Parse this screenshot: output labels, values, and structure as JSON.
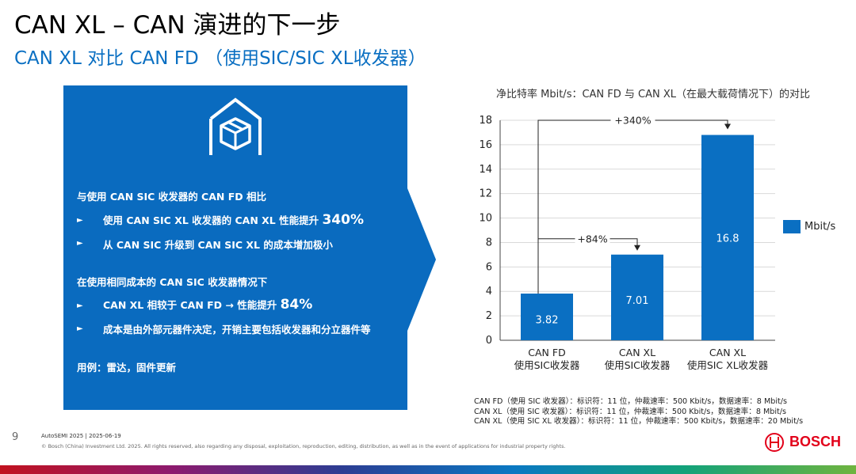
{
  "header": {
    "title": "CAN XL – CAN 演进的下一步",
    "subtitle": "CAN XL 对比 CAN FD （使用SIC/SIC XL收发器）"
  },
  "panel": {
    "icon": "box-in-house-icon",
    "section1_heading": "与使用 CAN SIC 收发器的 CAN FD 相比",
    "section1_bullet1_text": "使用 CAN SIC XL 收发器的 CAN XL 性能提升 ",
    "section1_bullet1_value": "340%",
    "section1_bullet2_text": "从 CAN SIC 升级到 CAN SIC XL 的成本增加极小",
    "section2_heading": "在使用相同成本的 CAN SIC 收发器情况下",
    "section2_bullet1_text": "CAN XL 相较于 CAN FD → 性能提升 ",
    "section2_bullet1_value": "84%",
    "section2_bullet2_text": "成本是由外部元器件决定，开销主要包括收发器和分立器件等",
    "usecase": "用例：雷达，固件更新",
    "bullet_glyph": "►"
  },
  "chart_data": {
    "type": "bar",
    "title": "净比特率 Mbit/s：CAN FD 与 CAN XL（在最大载荷情况下）的对比",
    "categories": [
      [
        "CAN FD",
        "使用SIC收发器"
      ],
      [
        "CAN XL",
        "使用SIC收发器"
      ],
      [
        "CAN XL",
        "使用SIC XL收发器"
      ]
    ],
    "series": [
      {
        "name": "Mbit/s",
        "values": [
          3.82,
          7.01,
          16.8
        ]
      }
    ],
    "data_labels": [
      "3.82",
      "7.01",
      "16.8"
    ],
    "yticks": [
      0,
      2,
      4,
      6,
      8,
      10,
      12,
      14,
      16,
      18
    ],
    "ylim": [
      0,
      18
    ],
    "grid": true,
    "legend_position": "right",
    "bar_color": "#0a6fc2",
    "annotations": [
      {
        "text": "+84%",
        "from_category": 0,
        "to_category": 1
      },
      {
        "text": "+340%",
        "from_category": 0,
        "to_category": 2
      }
    ]
  },
  "footnotes": [
    "CAN FD（使用 SIC 收发器）：标识符：11 位，仲裁速率：500 Kbit/s，数据速率：8 Mbit/s",
    "CAN XL（使用 SIC 收发器）：标识符：11 位，仲裁速率：500 Kbit/s，数据速率：8 Mbit/s",
    "CAN XL（使用 SIC XL 收发器）：标识符：11 位，仲裁速率：500 Kbit/s，数据速率：20 Mbit/s"
  ],
  "footer": {
    "page_number": "9",
    "event": "AutoSEMI 2025 | 2025-06-19",
    "copyright": "© Bosch (China) Investment Ltd. 2025. All rights reserved, also regarding any disposal, exploitation, reproduction, editing, distribution, as well as in the event of applications for industrial property rights.",
    "brand": "BOSCH",
    "brand_color": "#e2001a"
  },
  "colors": {
    "panel": "#0a6bbf",
    "accent": "#0a6fc2"
  }
}
